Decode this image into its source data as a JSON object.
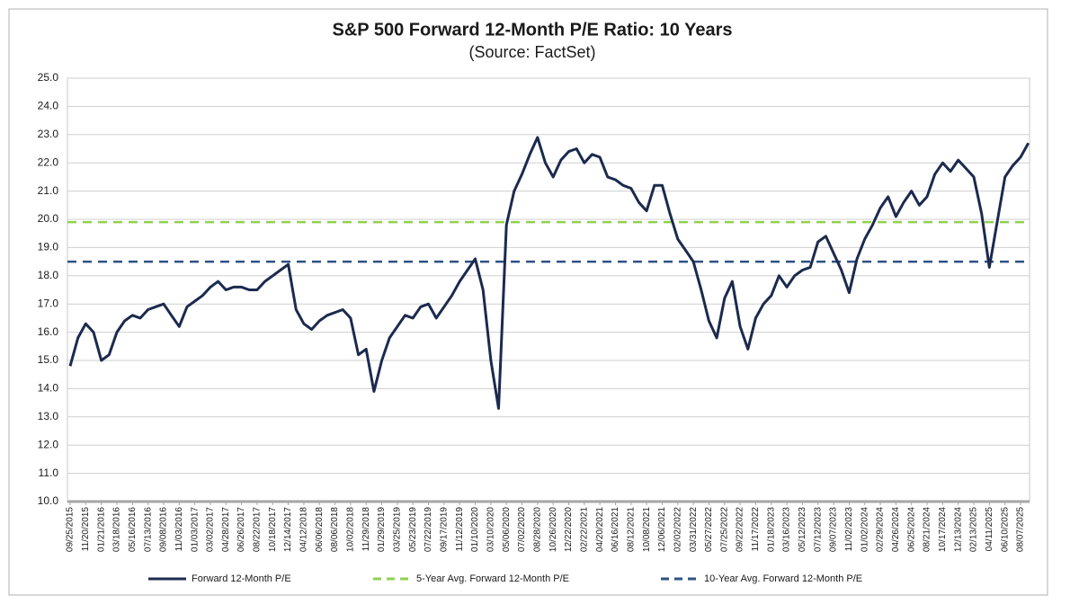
{
  "chart_data": {
    "type": "line",
    "title": "S&P 500 Forward 12-Month P/E Ratio: 10 Years",
    "subtitle": "(Source: FactSet)",
    "categories": [
      "09/25/2015",
      null,
      "11/20/2015",
      null,
      "01/21/2016",
      null,
      "03/18/2016",
      null,
      "05/16/2016",
      null,
      "07/13/2016",
      null,
      "09/08/2016",
      null,
      "11/03/2016",
      null,
      "01/03/2017",
      null,
      "03/02/2017",
      null,
      "04/28/2017",
      null,
      "06/26/2017",
      null,
      "08/22/2017",
      null,
      "10/18/2017",
      null,
      "12/14/2017",
      null,
      "04/12/2018",
      null,
      "06/06/2018",
      null,
      "08/06/2018",
      null,
      "10/02/2018",
      null,
      "11/29/2018",
      null,
      "01/29/2019",
      null,
      "03/25/2019",
      null,
      "05/23/2019",
      null,
      "07/22/2019",
      null,
      "09/17/2019",
      null,
      "11/12/2019",
      null,
      "01/10/2020",
      null,
      "03/10/2020",
      null,
      "05/06/2020",
      null,
      "07/02/2020",
      null,
      "08/28/2020",
      null,
      "10/26/2020",
      null,
      "12/22/2020",
      null,
      "02/22/2021",
      null,
      "04/20/2021",
      null,
      "06/16/2021",
      null,
      "08/12/2021",
      null,
      "10/08/2021",
      null,
      "12/06/2021",
      null,
      "02/02/2022",
      null,
      "03/31/2022",
      null,
      "05/27/2022",
      null,
      "07/25/2022",
      null,
      "09/22/2022",
      null,
      "11/17/2022",
      null,
      "01/18/2023",
      null,
      "03/16/2023",
      null,
      "05/12/2023",
      null,
      "07/12/2023",
      null,
      "09/07/2023",
      null,
      "11/02/2023",
      null,
      "01/02/2024",
      null,
      "02/29/2024",
      null,
      "04/26/2024",
      null,
      "06/25/2024",
      null,
      "08/21/2024",
      null,
      "10/17/2024",
      null,
      "12/13/2024",
      null,
      "02/13/2025",
      null,
      "04/11/2025",
      null,
      "06/10/2025",
      null,
      "08/07/2025",
      null
    ],
    "series": [
      {
        "name": "Forward 12-Month P/E",
        "color": "#1b2a4e",
        "values": [
          14.8,
          15.8,
          16.3,
          16.0,
          15.0,
          15.2,
          16.0,
          16.4,
          16.6,
          16.5,
          16.8,
          16.9,
          17.0,
          16.6,
          16.2,
          16.9,
          17.1,
          17.3,
          17.6,
          17.8,
          17.5,
          17.6,
          17.6,
          17.5,
          17.5,
          17.8,
          18.0,
          18.2,
          18.4,
          16.8,
          16.3,
          16.1,
          16.4,
          16.6,
          16.7,
          16.8,
          16.5,
          15.2,
          15.4,
          13.9,
          15.0,
          15.8,
          16.2,
          16.6,
          16.5,
          16.9,
          17.0,
          16.5,
          16.9,
          17.3,
          17.8,
          18.2,
          18.6,
          17.5,
          15.0,
          13.3,
          19.8,
          21.0,
          21.6,
          22.3,
          22.9,
          22.0,
          21.5,
          22.1,
          22.4,
          22.5,
          22.0,
          22.3,
          22.2,
          21.5,
          21.4,
          21.2,
          21.1,
          20.6,
          20.3,
          21.2,
          21.2,
          20.2,
          19.3,
          18.9,
          18.5,
          17.5,
          16.4,
          15.8,
          17.2,
          17.8,
          16.2,
          15.4,
          16.5,
          17.0,
          17.3,
          18.0,
          17.6,
          18.0,
          18.2,
          18.3,
          19.2,
          19.4,
          18.8,
          18.2,
          17.4,
          18.6,
          19.3,
          19.8,
          20.4,
          20.8,
          20.1,
          20.6,
          21.0,
          20.5,
          20.8,
          21.6,
          22.0,
          21.7,
          22.1,
          21.8,
          21.5,
          20.2,
          18.3,
          19.9,
          21.5,
          21.9,
          22.2,
          22.7
        ]
      }
    ],
    "reference_lines": [
      {
        "name": "5-Year Avg. Forward 12-Month P/E",
        "color": "#92d050",
        "value": 19.9
      },
      {
        "name": "10-Year Avg. Forward 12-Month P/E",
        "color": "#2e5283",
        "value": 18.5
      }
    ],
    "ylim": [
      10,
      25
    ],
    "yticks": [
      {
        "value": 10,
        "label": "10.0"
      },
      {
        "value": 11,
        "label": "11.0"
      },
      {
        "value": 12,
        "label": "12.0"
      },
      {
        "value": 13,
        "label": "13.0"
      },
      {
        "value": 14,
        "label": "14.0"
      },
      {
        "value": 15,
        "label": "15.0"
      },
      {
        "value": 16,
        "label": "16.0"
      },
      {
        "value": 17,
        "label": "17.0"
      },
      {
        "value": 18,
        "label": "18.0"
      },
      {
        "value": 19,
        "label": "19.0"
      },
      {
        "value": 20,
        "label": "20.0"
      },
      {
        "value": 21,
        "label": "21.0"
      },
      {
        "value": 22,
        "label": "22.0"
      },
      {
        "value": 23,
        "label": "23.0"
      },
      {
        "value": 24,
        "label": "24.0"
      },
      {
        "value": 25,
        "label": "25.0"
      }
    ],
    "grid": true,
    "legend": "bottom"
  }
}
